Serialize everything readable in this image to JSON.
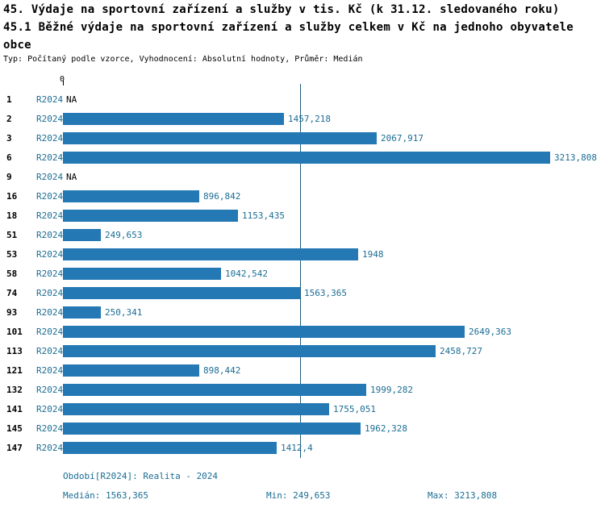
{
  "title": {
    "line1": "45. Výdaje na sportovní zařízení a služby v tis. Kč (k 31.12. sledovaného roku)",
    "line2": "45.1 Běžné výdaje na sportovní zařízení a služby celkem v Kč na jednoho obyvatele",
    "line3": "obce"
  },
  "subtitle": "Typ: Počítaný podle vzorce, Vyhodnocení: Absolutní hodnoty, Průměr: Medián",
  "axis": {
    "zero_label": "0"
  },
  "colors": {
    "bar": "#2478b4",
    "accent_text": "#1b6d93",
    "median_line": "#1f5d7e"
  },
  "chart_data": {
    "type": "bar",
    "orientation": "horizontal",
    "xlim": [
      0,
      3213.808
    ],
    "median": 1563.365,
    "grid": false,
    "rows": [
      {
        "rank": "1",
        "period": "R2024",
        "value": null,
        "label": "NA"
      },
      {
        "rank": "2",
        "period": "R2024",
        "value": 1457.218,
        "label": "1457,218"
      },
      {
        "rank": "3",
        "period": "R2024",
        "value": 2067.917,
        "label": "2067,917"
      },
      {
        "rank": "6",
        "period": "R2024",
        "value": 3213.808,
        "label": "3213,808"
      },
      {
        "rank": "9",
        "period": "R2024",
        "value": null,
        "label": "NA"
      },
      {
        "rank": "16",
        "period": "R2024",
        "value": 896.842,
        "label": "896,842"
      },
      {
        "rank": "18",
        "period": "R2024",
        "value": 1153.435,
        "label": "1153,435"
      },
      {
        "rank": "51",
        "period": "R2024",
        "value": 249.653,
        "label": "249,653"
      },
      {
        "rank": "53",
        "period": "R2024",
        "value": 1948,
        "label": "1948"
      },
      {
        "rank": "58",
        "period": "R2024",
        "value": 1042.542,
        "label": "1042,542"
      },
      {
        "rank": "74",
        "period": "R2024",
        "value": 1563.365,
        "label": "1563,365"
      },
      {
        "rank": "93",
        "period": "R2024",
        "value": 250.341,
        "label": "250,341"
      },
      {
        "rank": "101",
        "period": "R2024",
        "value": 2649.363,
        "label": "2649,363"
      },
      {
        "rank": "113",
        "period": "R2024",
        "value": 2458.727,
        "label": "2458,727"
      },
      {
        "rank": "121",
        "period": "R2024",
        "value": 898.442,
        "label": "898,442"
      },
      {
        "rank": "132",
        "period": "R2024",
        "value": 1999.282,
        "label": "1999,282"
      },
      {
        "rank": "141",
        "period": "R2024",
        "value": 1755.051,
        "label": "1755,051"
      },
      {
        "rank": "145",
        "period": "R2024",
        "value": 1962.328,
        "label": "1962,328"
      },
      {
        "rank": "147",
        "period": "R2024",
        "value": 1412.4,
        "label": "1412,4"
      }
    ]
  },
  "footer": {
    "period": "Období[R2024]: Realita - 2024",
    "median": "Medián: 1563,365",
    "min": "Min: 249,653",
    "max": "Max: 3213,808"
  }
}
